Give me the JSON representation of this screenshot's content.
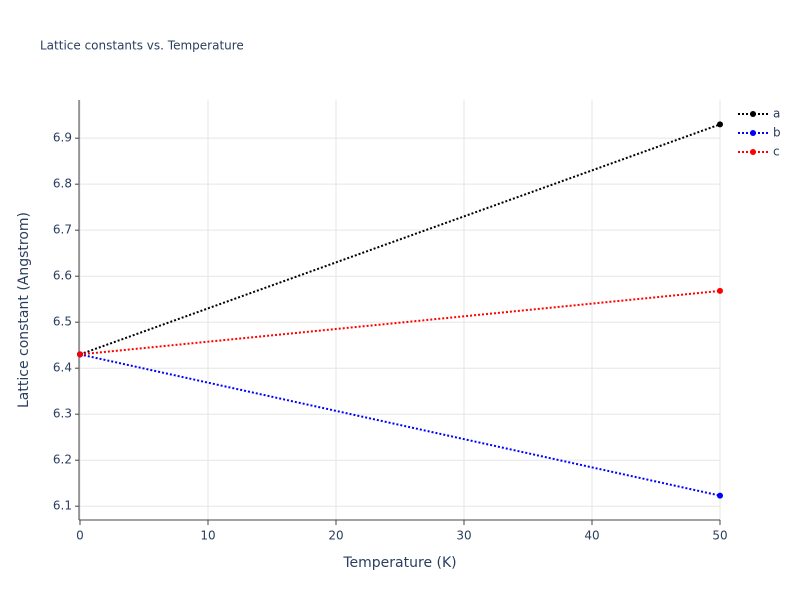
{
  "chart_data": {
    "type": "line",
    "title": "Lattice constants vs. Temperature",
    "x_label": "Temperature (K)",
    "y_label": "Lattice constant (Angstrom)",
    "x": [
      0,
      50
    ],
    "series": [
      {
        "name": "a",
        "color": "#000000",
        "values": [
          6.43,
          6.93
        ]
      },
      {
        "name": "b",
        "color": "#0000ff",
        "values": [
          6.43,
          6.123
        ]
      },
      {
        "name": "c",
        "color": "#ff0000",
        "values": [
          6.43,
          6.568
        ]
      }
    ],
    "xlim": [
      0,
      50
    ],
    "xticks": [
      0,
      10,
      20,
      30,
      40,
      50
    ],
    "ylim": [
      6.07,
      6.983
    ],
    "yticks": [
      6.1,
      6.2,
      6.3,
      6.4,
      6.5,
      6.6,
      6.7,
      6.8,
      6.9
    ],
    "grid": true,
    "legend": "right"
  }
}
